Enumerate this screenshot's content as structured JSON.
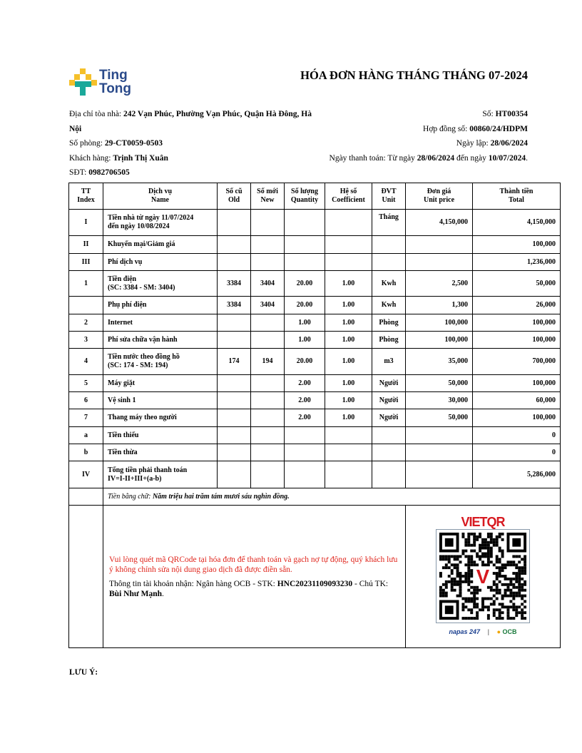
{
  "header": {
    "brand": "Ting Tong",
    "title": "HÓA ĐƠN HÀNG THÁNG THÁNG 07-2024"
  },
  "info_left": {
    "address_label": "Địa chỉ tòa nhà: ",
    "address": "242 Vạn Phúc, Phường Vạn Phúc, Quận Hà Đông, Hà Nội",
    "room_label": "Số phòng: ",
    "room": "29-CT0059-0503",
    "customer_label": "Khách hàng: ",
    "customer": "Trịnh Thị Xuân",
    "phone_label": "SĐT: ",
    "phone": "0982706505"
  },
  "info_right": {
    "no_label": "Số: ",
    "no": "HT00354",
    "contract_label": "Hợp đồng số: ",
    "contract": "00860/24/HDPM",
    "date_label": "Ngày lập: ",
    "date": "28/06/2024",
    "pay_label": "Ngày thanh toán: Từ ngày ",
    "pay_from": "28/06/2024",
    "pay_mid": " đến ngày ",
    "pay_to": "10/07/2024",
    "pay_end": "."
  },
  "table": {
    "headers": [
      [
        "TT",
        "Index"
      ],
      [
        "Dịch vụ",
        "Name"
      ],
      [
        "Số cũ",
        "Old"
      ],
      [
        "Số mới",
        "New"
      ],
      [
        "Số lượng",
        "Quantity"
      ],
      [
        "Hệ số",
        "Coefficient"
      ],
      [
        "ĐVT",
        "Unit"
      ],
      [
        "Đơn giá",
        "Unit price"
      ],
      [
        "Thành tiền",
        "Total"
      ]
    ],
    "rows": [
      [
        "I",
        "Tiền nhà từ ngày 11/07/2024\nđến ngày 10/08/2024",
        "",
        "",
        "",
        "",
        "Tháng",
        "4,150,000",
        "4,150,000"
      ],
      [
        "II",
        "Khuyến mại/Giảm giá",
        "",
        "",
        "",
        "",
        "",
        "",
        "100,000"
      ],
      [
        "III",
        "Phí dịch vụ",
        "",
        "",
        "",
        "",
        "",
        "",
        "1,236,000"
      ],
      [
        "1",
        "Tiền điện\n(SC: 3384 - SM: 3404)",
        "3384",
        "3404",
        "20.00",
        "1.00",
        "Kwh",
        "2,500",
        "50,000"
      ],
      [
        "",
        "Phụ phí điện",
        "3384",
        "3404",
        "20.00",
        "1.00",
        "Kwh",
        "1,300",
        "26,000"
      ],
      [
        "2",
        "Internet",
        "",
        "",
        "1.00",
        "1.00",
        "Phòng",
        "100,000",
        "100,000"
      ],
      [
        "3",
        "Phí sửa chữa vận hành",
        "",
        "",
        "1.00",
        "1.00",
        "Phòng",
        "100,000",
        "100,000"
      ],
      [
        "4",
        "Tiền nước theo đồng hồ\n(SC: 174 - SM: 194)",
        "174",
        "194",
        "20.00",
        "1.00",
        "m3",
        "35,000",
        "700,000"
      ],
      [
        "5",
        "Máy giặt",
        "",
        "",
        "2.00",
        "1.00",
        "Người",
        "50,000",
        "100,000"
      ],
      [
        "6",
        "Vệ sinh 1",
        "",
        "",
        "2.00",
        "1.00",
        "Người",
        "30,000",
        "60,000"
      ],
      [
        "7",
        "Thang máy theo người",
        "",
        "",
        "2.00",
        "1.00",
        "Người",
        "50,000",
        "100,000"
      ],
      [
        "a",
        "Tiền thiếu",
        "",
        "",
        "",
        "",
        "",
        "",
        "0"
      ],
      [
        "b",
        "Tiền thừa",
        "",
        "",
        "",
        "",
        "",
        "",
        "0"
      ],
      [
        "IV",
        "Tổng tiền phải thanh toán\nIV=I-II+III+(a-b)",
        "",
        "",
        "",
        "",
        "",
        "",
        "5,286,000"
      ]
    ],
    "words_label": "Tiền bằng chữ: ",
    "words": "Năm triệu hai trăm tám mươi sáu nghìn đồng."
  },
  "payment": {
    "notice": "Vui lòng quét mã QRCode tại hóa đơn để thanh toán và gạch nợ tự động, quý khách lưu ý không chỉnh sửa nội dung giao dịch đã được điền sẵn.",
    "account_label": "Thông tin tài khoản nhận: Ngân hàng OCB - STK: ",
    "account": "HNC20231109093230",
    "holder_label": " - Chủ TK: ",
    "holder": "Bùi Như Mạnh",
    "end": ".",
    "vietqr": "VIETQR",
    "napas": "napas 247",
    "ocb": "OCB"
  },
  "note_label": "LƯU Ý:",
  "colors": {
    "red": "#e0241b",
    "logo_yellow": "#f5c02a",
    "logo_teal": "#1aa89a",
    "vietqr_red": "#d71920"
  }
}
